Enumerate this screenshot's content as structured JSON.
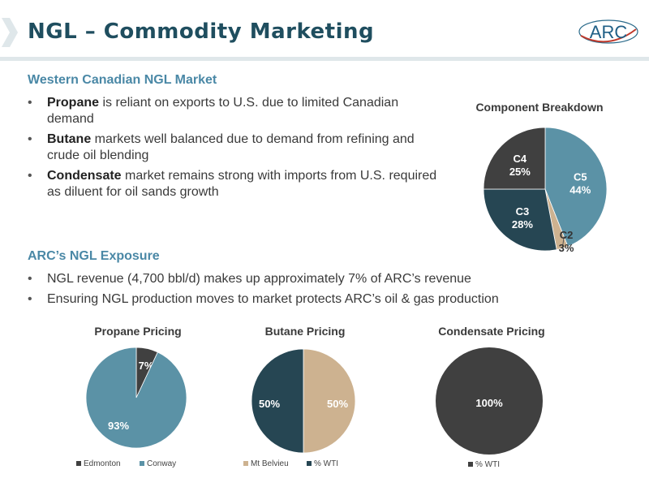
{
  "header": {
    "title": "NGL – Commodity Marketing",
    "logo_text": "ARC"
  },
  "section1": {
    "heading": "Western Canadian NGL Market",
    "bullets": [
      {
        "bold": "Propane",
        "text": " is reliant on exports to U.S. due to limited Canadian demand"
      },
      {
        "bold": "Butane",
        "text": " markets well balanced due to demand from refining and crude oil blending"
      },
      {
        "bold": "Condensate",
        "text": " market remains strong with imports from U.S. required as diluent for oil sands growth"
      }
    ]
  },
  "section2": {
    "heading": "ARC’s NGL Exposure",
    "bullets": [
      "NGL revenue (4,700 bbl/d) makes up approximately 7% of ARC’s revenue",
      "Ensuring NGL production moves to market protects ARC’s oil & gas production"
    ]
  },
  "colors": {
    "title": "#1f4e5f",
    "heading": "#4a88a6",
    "dark_gray": "#404040",
    "steel_blue": "#5b92a6",
    "dark_teal": "#264653",
    "tan": "#cdb290"
  },
  "chart_data": [
    {
      "type": "pie",
      "title": "Component Breakdown",
      "slices": [
        {
          "label": "C5",
          "value": 44,
          "display": "44%",
          "color": "#5b92a6"
        },
        {
          "label": "C2",
          "value": 3,
          "display": "3%",
          "color": "#cdb290"
        },
        {
          "label": "C3",
          "value": 28,
          "display": "28%",
          "color": "#264653"
        },
        {
          "label": "C4",
          "value": 25,
          "display": "25%",
          "color": "#404040"
        }
      ]
    },
    {
      "type": "pie",
      "title": "Propane Pricing",
      "slices": [
        {
          "label": "Edmonton",
          "value": 7,
          "display": "7%",
          "color": "#404040"
        },
        {
          "label": "Conway",
          "value": 93,
          "display": "93%",
          "color": "#5b92a6"
        }
      ],
      "legend": [
        "Edmonton",
        "Conway"
      ]
    },
    {
      "type": "pie",
      "title": "Butane Pricing",
      "slices": [
        {
          "label": "Mt Belvieu",
          "value": 50,
          "display": "50%",
          "color": "#cdb290"
        },
        {
          "label": "% WTI",
          "value": 50,
          "display": "50%",
          "color": "#264653"
        }
      ],
      "legend": [
        "Mt Belvieu",
        "% WTI"
      ]
    },
    {
      "type": "pie",
      "title": "Condensate Pricing",
      "slices": [
        {
          "label": "% WTI",
          "value": 100,
          "display": "100%",
          "color": "#404040"
        }
      ],
      "legend": [
        "% WTI"
      ]
    }
  ]
}
